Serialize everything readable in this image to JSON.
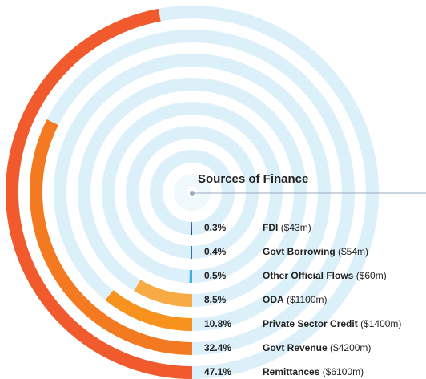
{
  "chart_data": {
    "type": "radial_bar",
    "title": "Sources of Finance",
    "categories": [
      "FDI",
      "Govt Borrowing",
      "Other Official Flows",
      "ODA",
      "Private Sector Credit",
      "Govt Revenue",
      "Remittances"
    ],
    "amounts": [
      "($43m)",
      "($54m)",
      "($60m)",
      "($1100m)",
      "($1400m)",
      "($4200m)",
      "($6100m)"
    ],
    "values": [
      0.3,
      0.4,
      0.5,
      8.5,
      10.8,
      32.4,
      47.1
    ],
    "value_labels": [
      "0.3%",
      "0.4%",
      "0.5%",
      "8.5%",
      "10.8%",
      "32.4%",
      "47.1%"
    ],
    "colors": [
      "#24358a",
      "#2f72b8",
      "#3cb0e2",
      "#f8ab45",
      "#f7921f",
      "#f47a22",
      "#f05a2c"
    ]
  }
}
